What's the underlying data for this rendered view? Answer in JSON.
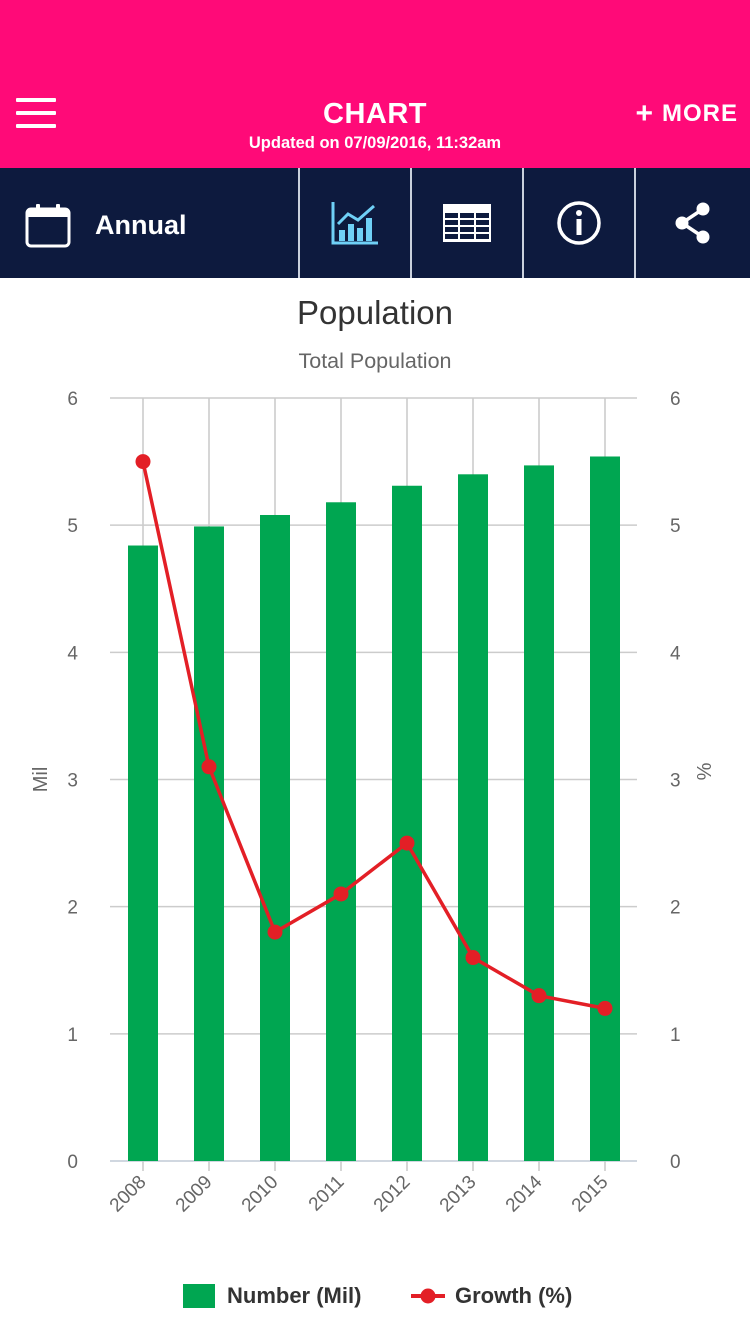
{
  "header": {
    "title": "CHART",
    "updated": "Updated on 07/09/2016, 11:32am",
    "more_label": "MORE",
    "more_icon": "plus-icon",
    "menu_icon": "hamburger-icon",
    "background": "#ff0a78"
  },
  "toolbar": {
    "period_label": "Annual",
    "period_icon": "calendar-icon",
    "tools": [
      {
        "name": "chart-view",
        "icon": "chart-icon",
        "active": true
      },
      {
        "name": "table-view",
        "icon": "table-icon",
        "active": false
      },
      {
        "name": "info",
        "icon": "info-icon",
        "active": false
      },
      {
        "name": "share",
        "icon": "share-icon",
        "active": false
      }
    ],
    "background": "#0d1a3e",
    "active_color": "#6fd0f6"
  },
  "chart_data": {
    "type": "bar",
    "title": "Population",
    "subtitle": "Total Population",
    "categories": [
      "2008",
      "2009",
      "2010",
      "2011",
      "2012",
      "2013",
      "2014",
      "2015"
    ],
    "series": [
      {
        "name": "Number (Mil)",
        "type": "bar",
        "axis": "left",
        "color": "#00a651",
        "values": [
          4.84,
          4.99,
          5.08,
          5.18,
          5.31,
          5.4,
          5.47,
          5.54
        ]
      },
      {
        "name": "Growth (%)",
        "type": "line",
        "axis": "right",
        "color": "#e31f26",
        "values": [
          5.5,
          3.1,
          1.8,
          2.1,
          2.5,
          1.6,
          1.3,
          1.2
        ]
      }
    ],
    "ylabel_left": "Mil",
    "ylabel_right": "%",
    "ylim_left": [
      0,
      6
    ],
    "ylim_right": [
      0,
      6
    ],
    "yticks": [
      "0",
      "1",
      "2",
      "3",
      "4",
      "5",
      "6"
    ],
    "grid": true,
    "legend_position": "bottom-center"
  }
}
